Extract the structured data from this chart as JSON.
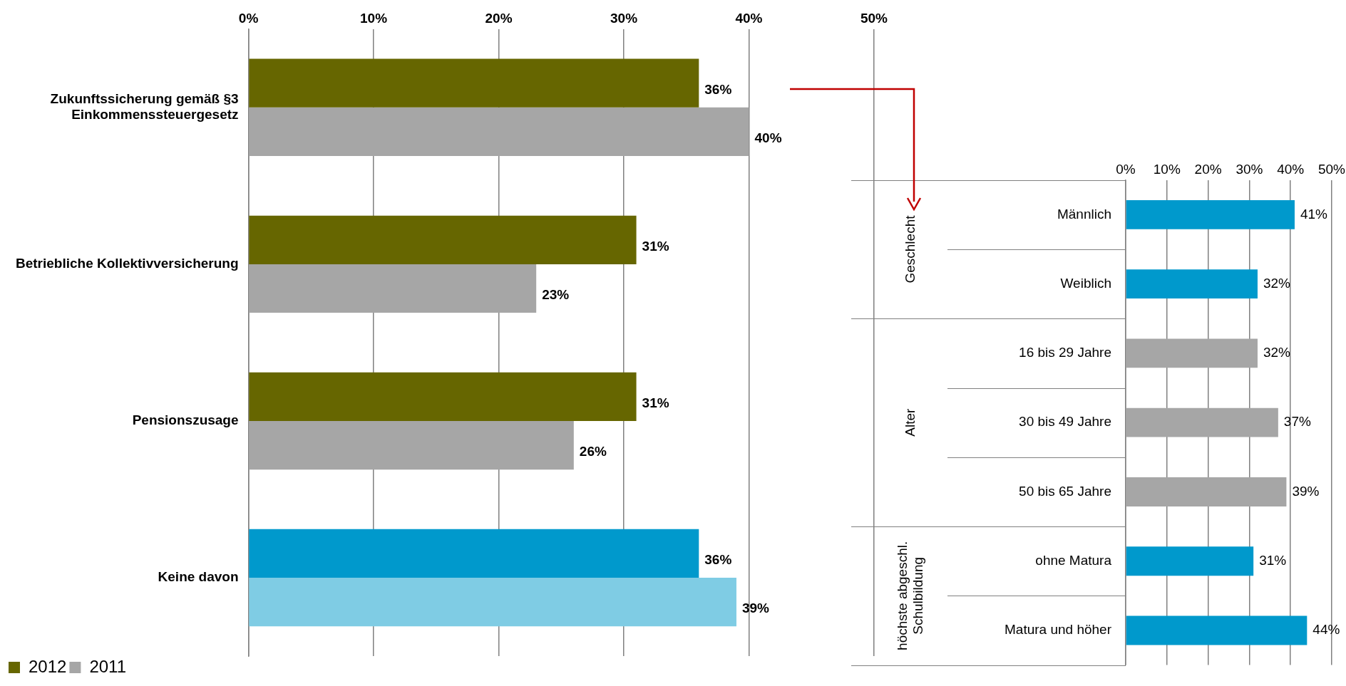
{
  "chart_data": [
    {
      "type": "bar",
      "orientation": "horizontal",
      "categories": [
        "Zukunftssicherung gemäß §3 Einkommenssteuergesetz",
        "Betriebliche Kollektivversicherung",
        "Pensionszusage",
        "Keine davon"
      ],
      "series": [
        {
          "name": "2012",
          "color": "#666600",
          "colors": [
            "#666600",
            "#666600",
            "#666600",
            "#0099cc"
          ],
          "values": [
            36,
            31,
            31,
            36
          ],
          "value_labels": [
            "36%",
            "31%",
            "31%",
            "36%"
          ]
        },
        {
          "name": "2011",
          "color": "#a6a6a6",
          "colors": [
            "#a6a6a6",
            "#a6a6a6",
            "#a6a6a6",
            "#7fcce4"
          ],
          "values": [
            40,
            23,
            26,
            39
          ],
          "value_labels": [
            "40%",
            "23%",
            "26%",
            "39%"
          ]
        }
      ],
      "xlim": [
        0,
        50
      ],
      "xticks": [
        {
          "value": 0,
          "label": "0%"
        },
        {
          "value": 10,
          "label": "10%"
        },
        {
          "value": 20,
          "label": "20%"
        },
        {
          "value": 30,
          "label": "30%"
        },
        {
          "value": 40,
          "label": "40%"
        },
        {
          "value": 50,
          "label": "50%"
        }
      ],
      "grid": "x",
      "legend": "bottom"
    },
    {
      "type": "bar",
      "orientation": "horizontal",
      "categories": [
        "Männlich",
        "Weiblich",
        "16 bis 29 Jahre",
        "30 bis 49 Jahre",
        "50 bis 65 Jahre",
        "ohne Matura",
        "Matura und höher"
      ],
      "values": [
        41,
        32,
        32,
        37,
        39,
        31,
        44
      ],
      "colors": [
        "#0099cc",
        "#0099cc",
        "#a6a6a6",
        "#a6a6a6",
        "#a6a6a6",
        "#0099cc",
        "#0099cc"
      ],
      "value_labels": [
        "41%",
        "32%",
        "32%",
        "37%",
        "39%",
        "31%",
        "44%"
      ],
      "annotations": [
        "Geschlecht",
        "Alter",
        "höchste abgeschl. Schulbildung"
      ],
      "xlim": [
        0,
        50
      ],
      "xticks": [
        {
          "value": 0,
          "label": "0%"
        },
        {
          "value": 10,
          "label": "10%"
        },
        {
          "value": 20,
          "label": "20%"
        },
        {
          "value": 30,
          "label": "30%"
        },
        {
          "value": 40,
          "label": "40%"
        },
        {
          "value": 50,
          "label": "50%"
        }
      ],
      "grid": "x",
      "legend": false
    }
  ]
}
